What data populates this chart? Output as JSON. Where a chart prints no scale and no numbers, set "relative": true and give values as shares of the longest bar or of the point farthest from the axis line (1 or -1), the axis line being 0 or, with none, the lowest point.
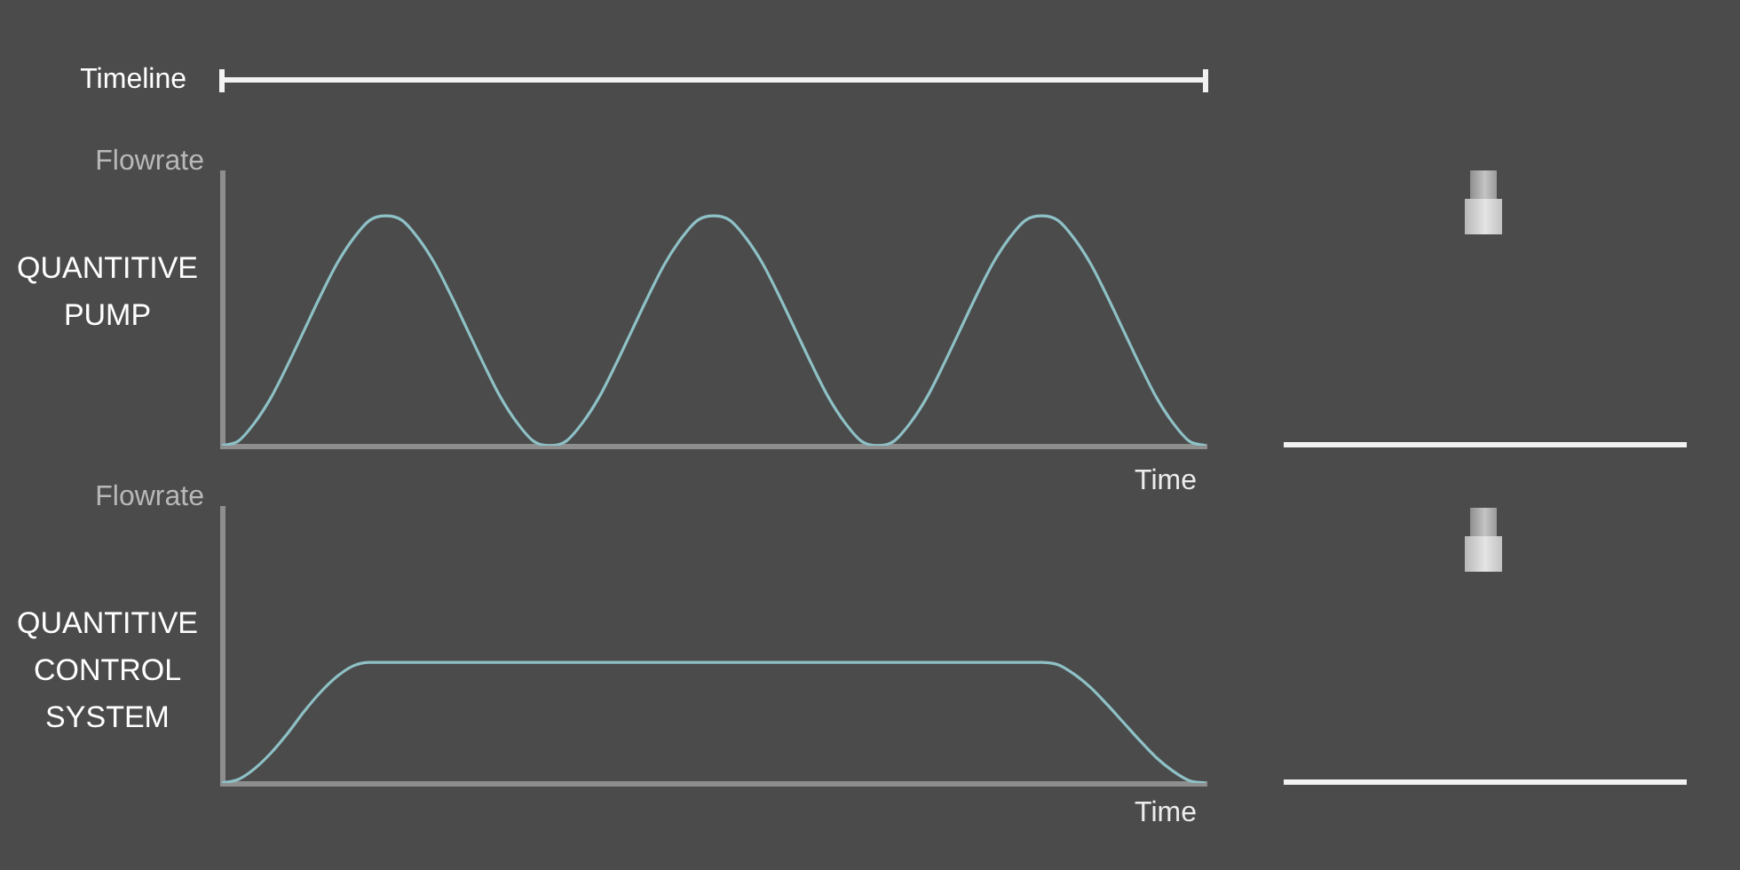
{
  "chart_data": [
    {
      "type": "line",
      "title": "QUANTITIVE PUMP",
      "xlabel": "Time",
      "ylabel": "Flowrate",
      "annotations": [
        "Timeline"
      ],
      "relative": true,
      "tick_labels": false,
      "marker": "none",
      "line_style": "solid",
      "categories": [
        null,
        null,
        null,
        null,
        null,
        null,
        null,
        null,
        null,
        null,
        null,
        null,
        null,
        null,
        null,
        null,
        null,
        null,
        null,
        null,
        null,
        null,
        null,
        null,
        null,
        null,
        null,
        null,
        null,
        null,
        null,
        null,
        null,
        null,
        null,
        null,
        null,
        null,
        null,
        null,
        null,
        null,
        null,
        null,
        null,
        null,
        null,
        null,
        null,
        null,
        null,
        null,
        null,
        null,
        null,
        null,
        null,
        null,
        null,
        null,
        null
      ],
      "series": [
        {
          "color": "#8ec1c6",
          "values": [
            0,
            0.02,
            0.1,
            0.21,
            0.35,
            0.5,
            0.65,
            0.79,
            0.9,
            0.98,
            1,
            0.98,
            0.9,
            0.79,
            0.65,
            0.5,
            0.35,
            0.21,
            0.1,
            0.02,
            0,
            0.02,
            0.1,
            0.21,
            0.35,
            0.5,
            0.65,
            0.79,
            0.9,
            0.98,
            1,
            0.98,
            0.9,
            0.79,
            0.65,
            0.5,
            0.35,
            0.21,
            0.1,
            0.02,
            0,
            0.02,
            0.1,
            0.21,
            0.35,
            0.5,
            0.65,
            0.79,
            0.9,
            0.98,
            1,
            0.98,
            0.9,
            0.79,
            0.65,
            0.5,
            0.35,
            0.21,
            0.1,
            0.02,
            0
          ]
        }
      ]
    },
    {
      "type": "line",
      "title": "QUANTITIVE CONTROL SYSTEM",
      "xlabel": "Time",
      "ylabel": "Flowrate",
      "relative": true,
      "tick_labels": false,
      "marker": "none",
      "line_style": "solid",
      "categories": [
        null,
        null,
        null,
        null,
        null,
        null,
        null,
        null,
        null,
        null,
        null,
        null,
        null,
        null,
        null,
        null,
        null,
        null,
        null,
        null,
        null,
        null,
        null,
        null,
        null,
        null,
        null,
        null,
        null,
        null,
        null,
        null,
        null,
        null,
        null,
        null,
        null,
        null,
        null,
        null,
        null,
        null,
        null,
        null,
        null,
        null,
        null,
        null,
        null,
        null,
        null,
        null,
        null,
        null,
        null,
        null,
        null,
        null,
        null,
        null,
        null
      ],
      "series": [
        {
          "color": "#8ec1c6",
          "values": [
            0,
            0.03,
            0.12,
            0.25,
            0.41,
            0.59,
            0.75,
            0.88,
            0.97,
            1,
            1,
            1,
            1,
            1,
            1,
            1,
            1,
            1,
            1,
            1,
            1,
            1,
            1,
            1,
            1,
            1,
            1,
            1,
            1,
            1,
            1,
            1,
            1,
            1,
            1,
            1,
            1,
            1,
            1,
            1,
            1,
            1,
            1,
            1,
            1,
            1,
            1,
            1,
            1,
            1,
            1,
            0.98,
            0.9,
            0.79,
            0.65,
            0.5,
            0.35,
            0.21,
            0.1,
            0.02,
            0
          ]
        }
      ]
    }
  ]
}
